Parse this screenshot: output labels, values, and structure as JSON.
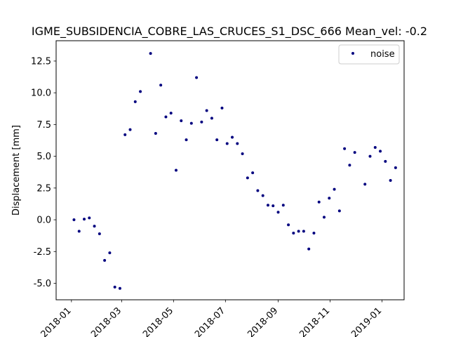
{
  "chart_data": {
    "type": "scatter",
    "title": "IGME_SUBSIDENCIA_COBRE_LAS_CRUCES_S1_DSC_666     Mean_vel: -0.2",
    "xlabel": "",
    "ylabel": "Displacement [mm]",
    "xlim": [
      "2017-12-14",
      "2019-01-27"
    ],
    "ylim": [
      -6.3,
      14.1
    ],
    "x_ticks": [
      "2018-01",
      "2018-03",
      "2018-05",
      "2018-07",
      "2018-09",
      "2018-11",
      "2019-01"
    ],
    "y_ticks": [
      -5.0,
      -2.5,
      0.0,
      2.5,
      5.0,
      7.5,
      10.0,
      12.5
    ],
    "legend": {
      "position": "upper-right"
    },
    "grid": false,
    "series": [
      {
        "name": "noise",
        "color": "#00007f",
        "marker": "dot",
        "points": [
          {
            "x": "2018-01-04",
            "y": 0.0
          },
          {
            "x": "2018-01-10",
            "y": -0.9
          },
          {
            "x": "2018-01-16",
            "y": 0.05
          },
          {
            "x": "2018-01-22",
            "y": 0.15
          },
          {
            "x": "2018-01-28",
            "y": -0.5
          },
          {
            "x": "2018-02-03",
            "y": -1.1
          },
          {
            "x": "2018-02-09",
            "y": -3.2
          },
          {
            "x": "2018-02-15",
            "y": -2.6
          },
          {
            "x": "2018-02-21",
            "y": -5.3
          },
          {
            "x": "2018-02-27",
            "y": -5.4
          },
          {
            "x": "2018-03-05",
            "y": 6.7
          },
          {
            "x": "2018-03-11",
            "y": 7.1
          },
          {
            "x": "2018-03-17",
            "y": 9.3
          },
          {
            "x": "2018-03-23",
            "y": 10.1
          },
          {
            "x": "2018-04-04",
            "y": 13.1
          },
          {
            "x": "2018-04-10",
            "y": 6.8
          },
          {
            "x": "2018-04-16",
            "y": 10.6
          },
          {
            "x": "2018-04-22",
            "y": 8.1
          },
          {
            "x": "2018-04-28",
            "y": 8.4
          },
          {
            "x": "2018-05-04",
            "y": 3.9
          },
          {
            "x": "2018-05-10",
            "y": 7.8
          },
          {
            "x": "2018-05-16",
            "y": 6.3
          },
          {
            "x": "2018-05-22",
            "y": 7.6
          },
          {
            "x": "2018-05-28",
            "y": 11.2
          },
          {
            "x": "2018-06-03",
            "y": 7.7
          },
          {
            "x": "2018-06-09",
            "y": 8.6
          },
          {
            "x": "2018-06-15",
            "y": 8.0
          },
          {
            "x": "2018-06-21",
            "y": 6.3
          },
          {
            "x": "2018-06-27",
            "y": 8.8
          },
          {
            "x": "2018-07-03",
            "y": 6.0
          },
          {
            "x": "2018-07-09",
            "y": 6.5
          },
          {
            "x": "2018-07-15",
            "y": 6.0
          },
          {
            "x": "2018-07-21",
            "y": 5.2
          },
          {
            "x": "2018-07-27",
            "y": 3.3
          },
          {
            "x": "2018-08-02",
            "y": 3.7
          },
          {
            "x": "2018-08-08",
            "y": 2.3
          },
          {
            "x": "2018-08-14",
            "y": 1.9
          },
          {
            "x": "2018-08-20",
            "y": 1.15
          },
          {
            "x": "2018-08-26",
            "y": 1.1
          },
          {
            "x": "2018-09-01",
            "y": 0.6
          },
          {
            "x": "2018-09-07",
            "y": 1.15
          },
          {
            "x": "2018-09-13",
            "y": -0.4
          },
          {
            "x": "2018-09-19",
            "y": -1.05
          },
          {
            "x": "2018-09-25",
            "y": -0.9
          },
          {
            "x": "2018-10-01",
            "y": -0.9
          },
          {
            "x": "2018-10-07",
            "y": -2.3
          },
          {
            "x": "2018-10-13",
            "y": -1.05
          },
          {
            "x": "2018-10-19",
            "y": 1.4
          },
          {
            "x": "2018-10-25",
            "y": 0.2
          },
          {
            "x": "2018-10-31",
            "y": 1.7
          },
          {
            "x": "2018-11-06",
            "y": 2.4
          },
          {
            "x": "2018-11-12",
            "y": 0.7
          },
          {
            "x": "2018-11-18",
            "y": 5.6
          },
          {
            "x": "2018-11-24",
            "y": 4.3
          },
          {
            "x": "2018-11-30",
            "y": 5.3
          },
          {
            "x": "2018-12-12",
            "y": 2.8
          },
          {
            "x": "2018-12-18",
            "y": 5.0
          },
          {
            "x": "2018-12-24",
            "y": 5.7
          },
          {
            "x": "2018-12-30",
            "y": 5.4
          },
          {
            "x": "2019-01-05",
            "y": 4.6
          },
          {
            "x": "2019-01-11",
            "y": 3.1
          },
          {
            "x": "2019-01-17",
            "y": 4.1
          }
        ]
      }
    ]
  }
}
